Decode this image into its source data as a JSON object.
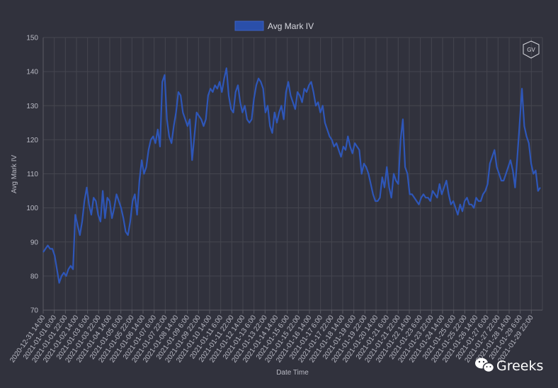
{
  "chart_data": {
    "type": "line",
    "title": "",
    "xlabel": "Date Time",
    "ylabel": "Avg Mark IV",
    "ylim": [
      70,
      150
    ],
    "yticks": [
      70,
      80,
      90,
      100,
      110,
      120,
      130,
      140,
      150
    ],
    "grid": true,
    "legend_position": "top-center",
    "series": [
      {
        "name": "Avg Mark IV",
        "color": "#2e56b8",
        "values": [
          87,
          88,
          89,
          88,
          88,
          86,
          82,
          78,
          80,
          81,
          80,
          82,
          83,
          82,
          98,
          95,
          92,
          96,
          102,
          106,
          101,
          98,
          103,
          102,
          98,
          96,
          105,
          97,
          103,
          102,
          97,
          100,
          104,
          102,
          100,
          97,
          93,
          92,
          96,
          102,
          104,
          98,
          108,
          114,
          110,
          112,
          117,
          120,
          121,
          119,
          123,
          118,
          137,
          139,
          126,
          121,
          119,
          124,
          128,
          134,
          133,
          128,
          126,
          124,
          126,
          114,
          121,
          128,
          127,
          126,
          124,
          126,
          133,
          135,
          134,
          136,
          135,
          137,
          134,
          138,
          141,
          133,
          129,
          128,
          134,
          136,
          131,
          128,
          130,
          126,
          125,
          126,
          132,
          136,
          138,
          137,
          135,
          128,
          130,
          124,
          122,
          128,
          125,
          128,
          130,
          126,
          134,
          137,
          133,
          131,
          129,
          134,
          133,
          131,
          135,
          134,
          136,
          137,
          134,
          130,
          131,
          128,
          130,
          125,
          123,
          121,
          120,
          118,
          119,
          117,
          115,
          118,
          117,
          121,
          118,
          116,
          119,
          118,
          117,
          110,
          113,
          112,
          110,
          107,
          104,
          102,
          102,
          103,
          109,
          106,
          112,
          106,
          103,
          110,
          108,
          107,
          120,
          126,
          112,
          110,
          104,
          104,
          103,
          102,
          101,
          103,
          104,
          103,
          103,
          102,
          105,
          104,
          103,
          107,
          104,
          106,
          108,
          104,
          101,
          102,
          100,
          98,
          101,
          99,
          102,
          103,
          101,
          101,
          100,
          103,
          102,
          102,
          104,
          105,
          107,
          113,
          115,
          117,
          112,
          110,
          108,
          108,
          110,
          112,
          114,
          111,
          106,
          115,
          125,
          135,
          124,
          121,
          119,
          113,
          110,
          111,
          105,
          106
        ]
      }
    ],
    "x_tick_labels": [
      "2020-12-31 14:00",
      "2021-01-01 6:00",
      "2021-01-01 22:00",
      "2021-01-02 14:00",
      "2021-01-03 6:00",
      "2021-01-03 22:00",
      "2021-01-04 14:00",
      "2021-01-05 6:00",
      "2021-01-05 22:00",
      "2021-01-06 14:00",
      "2021-01-07 6:00",
      "2021-01-07 22:00",
      "2021-01-08 14:00",
      "2021-01-09 6:00",
      "2021-01-09 22:00",
      "2021-01-10 14:00",
      "2021-01-11 6:00",
      "2021-01-11 22:00",
      "2021-01-12 14:00",
      "2021-01-13 6:00",
      "2021-01-13 22:00",
      "2021-01-14 14:00",
      "2021-01-15 6:00",
      "2021-01-15 22:00",
      "2021-01-16 14:00",
      "2021-01-17 6:00",
      "2021-01-17 22:00",
      "2021-01-18 14:00",
      "2021-01-19 6:00",
      "2021-01-19 22:00",
      "2021-01-20 14:00",
      "2021-01-21 6:00",
      "2021-01-21 22:00",
      "2021-01-22 14:00",
      "2021-01-23 6:00",
      "2021-01-23 22:00",
      "2021-01-24 14:00",
      "2021-01-25 6:00",
      "2021-01-25 22:00",
      "2021-01-26 14:00",
      "2021-01-27 6:00",
      "2021-01-27 22:00",
      "2021-01-28 14:00",
      "2021-01-29 6:00",
      "2021-01-29 22:00"
    ]
  },
  "logo": {
    "text": "GV"
  },
  "watermark": {
    "text": "Greeks",
    "icon": "wechat-icon"
  }
}
